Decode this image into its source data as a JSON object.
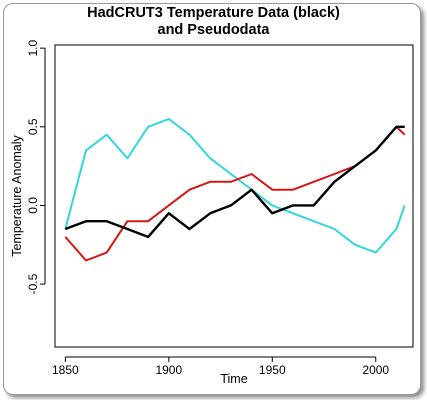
{
  "chart_data": {
    "type": "line",
    "title": "HadCRUT3 Temperature Data (black)",
    "subtitle": "and Pseudodata",
    "xlabel": "Time",
    "ylabel": "Temperature Anomaly",
    "xlim": [
      1845,
      2018
    ],
    "ylim": [
      -0.9,
      1.02
    ],
    "xticks": [
      "1850",
      "1900",
      "1950",
      "2000"
    ],
    "xtick_values": [
      1850,
      1900,
      1950,
      2000
    ],
    "yticks": [
      "-0.5",
      "0.0",
      "0.5",
      "1.0"
    ],
    "ytick_values": [
      -0.5,
      0.0,
      0.5,
      1.0
    ],
    "grid": false,
    "x": [
      1850,
      1860,
      1870,
      1880,
      1890,
      1900,
      1910,
      1920,
      1930,
      1940,
      1950,
      1960,
      1970,
      1980,
      1990,
      2000,
      2010,
      2014
    ],
    "series": [
      {
        "color": "#33d6dd",
        "values": [
          -0.15,
          0.35,
          0.45,
          0.3,
          0.5,
          0.55,
          0.45,
          0.3,
          0.2,
          0.1,
          0.0,
          -0.05,
          -0.1,
          -0.15,
          -0.25,
          -0.3,
          -0.15,
          0.0
        ]
      },
      {
        "color": "#d81515",
        "values": [
          -0.2,
          -0.35,
          -0.3,
          -0.1,
          -0.1,
          0.0,
          0.1,
          0.15,
          0.15,
          0.2,
          0.1,
          0.1,
          0.15,
          0.2,
          0.25,
          0.35,
          0.5,
          0.45
        ]
      },
      {
        "color": "#000000",
        "values": [
          -0.15,
          -0.1,
          -0.1,
          -0.15,
          -0.2,
          -0.05,
          -0.15,
          -0.05,
          0.0,
          0.1,
          -0.05,
          0.0,
          0.0,
          0.15,
          0.25,
          0.35,
          0.5,
          0.5
        ]
      }
    ]
  }
}
